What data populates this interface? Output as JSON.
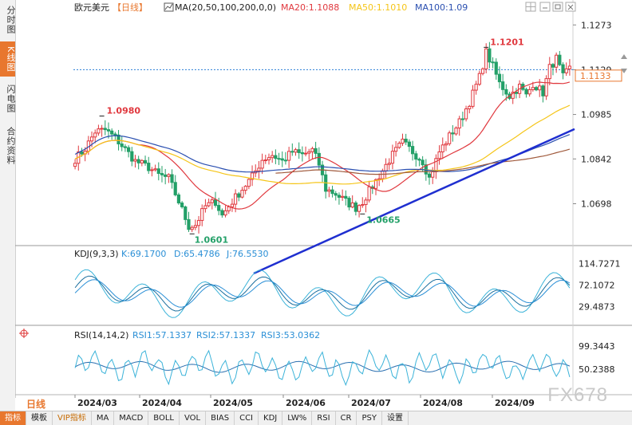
{
  "sidetabs": [
    {
      "label": "分时图",
      "active": false
    },
    {
      "label": "K线图",
      "active": true
    },
    {
      "label": "闪电图",
      "active": false
    },
    {
      "label": "合约资料",
      "active": false
    }
  ],
  "header": {
    "symbol": "欧元美元",
    "period_tag": "【日线】",
    "ma_label": "MA(20,50,100,200,0,0)",
    "ma20": "MA20:1.1088",
    "ma50": "MA50:1.1010",
    "ma100": "MA100:1.09"
  },
  "kdj": {
    "label": "KDJ(9,3,3)",
    "k": "K:69.1700",
    "d": "D:65.4786",
    "j": "J:76.5530"
  },
  "rsi": {
    "label": "RSI(14,14,2)",
    "r1": "RSI1:57.1337",
    "r2": "RSI2:57.1337",
    "r3": "RSI3:53.0362"
  },
  "period_label": "日线",
  "watermark": "FX678",
  "bottom_tabs": [
    {
      "label": "指标",
      "active": true
    },
    {
      "label": "模板"
    },
    {
      "label": "VIP指标",
      "vip": true
    },
    {
      "label": "MA"
    },
    {
      "label": "MACD"
    },
    {
      "label": "BOLL"
    },
    {
      "label": "VOL"
    },
    {
      "label": "BIAS"
    },
    {
      "label": "CCI"
    },
    {
      "label": "KDJ"
    },
    {
      "label": "LW%"
    },
    {
      "label": "RSI"
    },
    {
      "label": "CR"
    },
    {
      "label": "PSY"
    },
    {
      "label": "设置"
    }
  ],
  "colors": {
    "up": "#e0383e",
    "down": "#23a068",
    "ma20": "#e0383e",
    "ma50": "#f5c518",
    "ma100": "#2a4fb0",
    "ma200": "#a05a3c",
    "trend": "#1f2fd0"
  },
  "chart_data": {
    "type": "candlestick",
    "price_axis": {
      "ticks": [
        "1.1273",
        "1.1129",
        "1.0985",
        "1.0842",
        "1.0698"
      ],
      "ylim": [
        1.0571,
        1.1307
      ],
      "current_price": "1.1133",
      "dashed_line": 1.1129
    },
    "x_labels": [
      "2024/03",
      "2024/04",
      "2024/05",
      "2024/06",
      "2024/07",
      "2024/08",
      "2024/09"
    ],
    "annotations": [
      {
        "text": "1.0980",
        "value": 1.098
      },
      {
        "text": "1.0601",
        "value": 1.0601
      },
      {
        "text": "1.0665",
        "value": 1.0665
      },
      {
        "text": "1.1201",
        "value": 1.1201
      }
    ],
    "kdj_axis": [
      "114.7271",
      "72.1072",
      "29.4873"
    ],
    "rsi_axis": [
      "99.3443",
      "50.2388"
    ],
    "anchors": [
      {
        "i": 0,
        "p": 1.0842
      },
      {
        "i": 3,
        "p": 1.0875
      },
      {
        "i": 6,
        "p": 1.093
      },
      {
        "i": 9,
        "p": 1.0935
      },
      {
        "i": 12,
        "p": 1.091
      },
      {
        "i": 14,
        "p": 1.0885
      },
      {
        "i": 18,
        "p": 1.0835
      },
      {
        "i": 22,
        "p": 1.0815
      },
      {
        "i": 25,
        "p": 1.079
      },
      {
        "i": 28,
        "p": 1.078
      },
      {
        "i": 31,
        "p": 1.0705
      },
      {
        "i": 34,
        "p": 1.0625
      },
      {
        "i": 36,
        "p": 1.063
      },
      {
        "i": 39,
        "p": 1.069
      },
      {
        "i": 42,
        "p": 1.0705
      },
      {
        "i": 44,
        "p": 1.066
      },
      {
        "i": 47,
        "p": 1.0705
      },
      {
        "i": 50,
        "p": 1.0745
      },
      {
        "i": 53,
        "p": 1.0785
      },
      {
        "i": 56,
        "p": 1.084
      },
      {
        "i": 59,
        "p": 1.0855
      },
      {
        "i": 62,
        "p": 1.0835
      },
      {
        "i": 65,
        "p": 1.0865
      },
      {
        "i": 68,
        "p": 1.0855
      },
      {
        "i": 71,
        "p": 1.087
      },
      {
        "i": 73,
        "p": 1.0825
      },
      {
        "i": 75,
        "p": 1.0745
      },
      {
        "i": 78,
        "p": 1.073
      },
      {
        "i": 81,
        "p": 1.0705
      },
      {
        "i": 84,
        "p": 1.0685
      },
      {
        "i": 86,
        "p": 1.0705
      },
      {
        "i": 89,
        "p": 1.0755
      },
      {
        "i": 92,
        "p": 1.0805
      },
      {
        "i": 95,
        "p": 1.0855
      },
      {
        "i": 98,
        "p": 1.0895
      },
      {
        "i": 101,
        "p": 1.0865
      },
      {
        "i": 104,
        "p": 1.0835
      },
      {
        "i": 106,
        "p": 1.078
      },
      {
        "i": 109,
        "p": 1.0865
      },
      {
        "i": 112,
        "p": 1.0915
      },
      {
        "i": 115,
        "p": 1.096
      },
      {
        "i": 118,
        "p": 1.1025
      },
      {
        "i": 121,
        "p": 1.1105
      },
      {
        "i": 123,
        "p": 1.1185
      },
      {
        "i": 125,
        "p": 1.114
      },
      {
        "i": 127,
        "p": 1.1085
      },
      {
        "i": 130,
        "p": 1.1045
      },
      {
        "i": 133,
        "p": 1.1075
      },
      {
        "i": 135,
        "p": 1.1045
      },
      {
        "i": 137,
        "p": 1.1085
      },
      {
        "i": 140,
        "p": 1.1055
      },
      {
        "i": 142,
        "p": 1.1135
      },
      {
        "i": 144,
        "p": 1.1165
      },
      {
        "i": 146,
        "p": 1.1105
      },
      {
        "i": 148,
        "p": 1.1133
      }
    ]
  }
}
